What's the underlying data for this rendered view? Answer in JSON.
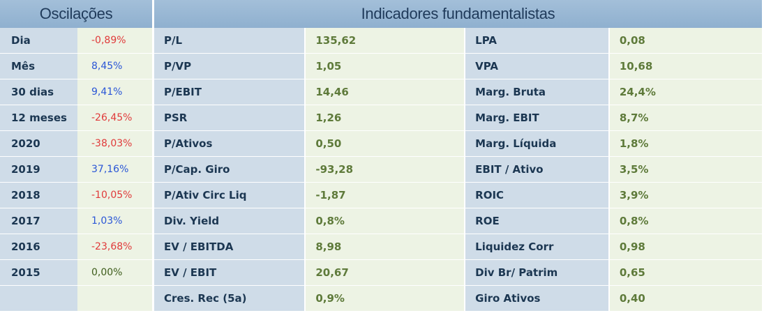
{
  "oscilacoes": {
    "title": "Oscilações",
    "rows": [
      {
        "label": "Dia",
        "value": "-0,89%",
        "sign": "neg"
      },
      {
        "label": "Mês",
        "value": "8,45%",
        "sign": "pos"
      },
      {
        "label": "30 dias",
        "value": "9,41%",
        "sign": "pos"
      },
      {
        "label": "12 meses",
        "value": "-26,45%",
        "sign": "neg"
      },
      {
        "label": "2020",
        "value": "-38,03%",
        "sign": "neg"
      },
      {
        "label": "2019",
        "value": "37,16%",
        "sign": "pos"
      },
      {
        "label": "2018",
        "value": "-10,05%",
        "sign": "neg"
      },
      {
        "label": "2017",
        "value": "1,03%",
        "sign": "pos"
      },
      {
        "label": "2016",
        "value": "-23,68%",
        "sign": "neg"
      },
      {
        "label": "2015",
        "value": "0,00%",
        "sign": "zero"
      },
      {
        "label": "",
        "value": "",
        "sign": "zero"
      }
    ]
  },
  "indicadores": {
    "title": "Indicadores fundamentalistas",
    "rows": [
      {
        "l1": "P/L",
        "v1": "135,62",
        "l2": "LPA",
        "v2": "0,08"
      },
      {
        "l1": "P/VP",
        "v1": "1,05",
        "l2": "VPA",
        "v2": "10,68"
      },
      {
        "l1": "P/EBIT",
        "v1": "14,46",
        "l2": "Marg. Bruta",
        "v2": "24,4%"
      },
      {
        "l1": "PSR",
        "v1": "1,26",
        "l2": "Marg. EBIT",
        "v2": "8,7%"
      },
      {
        "l1": "P/Ativos",
        "v1": "0,50",
        "l2": "Marg. Líquida",
        "v2": "1,8%"
      },
      {
        "l1": "P/Cap. Giro",
        "v1": "-93,28",
        "l2": "EBIT / Ativo",
        "v2": "3,5%"
      },
      {
        "l1": "P/Ativ Circ Liq",
        "v1": "-1,87",
        "l2": "ROIC",
        "v2": "3,9%"
      },
      {
        "l1": "Div. Yield",
        "v1": "0,8%",
        "l2": "ROE",
        "v2": "0,8%"
      },
      {
        "l1": "EV / EBITDA",
        "v1": "8,98",
        "l2": "Liquidez Corr",
        "v2": "0,98"
      },
      {
        "l1": "EV / EBIT",
        "v1": "20,67",
        "l2": "Div Br/ Patrim",
        "v2": "0,65"
      },
      {
        "l1": "Cres. Rec (5a)",
        "v1": "0,9%",
        "l2": "Giro Ativos",
        "v2": "0,40"
      }
    ]
  }
}
